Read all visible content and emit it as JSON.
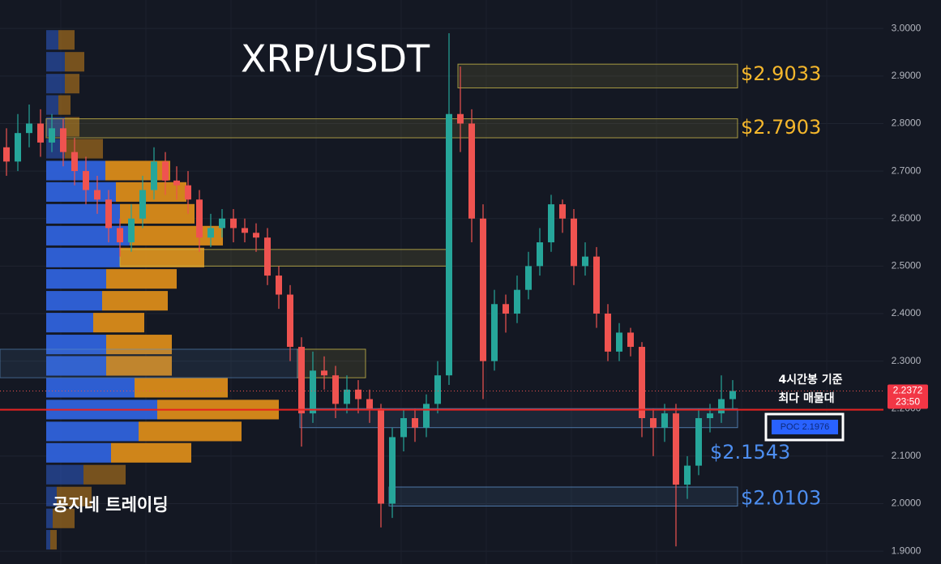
{
  "chart_data": {
    "type": "candlestick",
    "title": "XRP/USDT",
    "watermark": "공지네 트레이딩",
    "open": [
      2.75,
      2.72,
      2.78,
      2.8,
      2.76,
      2.79,
      2.74,
      2.7,
      2.66,
      2.64,
      2.58,
      2.55,
      2.6,
      2.66,
      2.72,
      2.68,
      2.67,
      2.64,
      2.56,
      2.58,
      2.6,
      2.58,
      2.57,
      2.56,
      2.48,
      2.44,
      2.33,
      2.19,
      2.28,
      2.27,
      2.21,
      2.24,
      2.22,
      2.2,
      2.0,
      2.14,
      2.18,
      2.16,
      2.21,
      2.27,
      2.82,
      2.8,
      2.6,
      2.3,
      2.42,
      2.4,
      2.45,
      2.5,
      2.55,
      2.63,
      2.6,
      2.5,
      2.52,
      2.4,
      2.32,
      2.36,
      2.33,
      2.18,
      2.16,
      2.19,
      2.04,
      2.08,
      2.18,
      2.19,
      2.22
    ],
    "high": [
      2.79,
      2.82,
      2.84,
      2.83,
      2.82,
      2.81,
      2.77,
      2.73,
      2.69,
      2.66,
      2.6,
      2.63,
      2.69,
      2.75,
      2.74,
      2.71,
      2.7,
      2.66,
      2.61,
      2.62,
      2.62,
      2.6,
      2.59,
      2.58,
      2.5,
      2.46,
      2.35,
      2.32,
      2.31,
      2.29,
      2.27,
      2.26,
      2.24,
      2.21,
      2.16,
      2.2,
      2.2,
      2.23,
      2.3,
      2.99,
      2.92,
      2.83,
      2.63,
      2.45,
      2.44,
      2.48,
      2.53,
      2.58,
      2.65,
      2.64,
      2.62,
      2.55,
      2.54,
      2.42,
      2.38,
      2.37,
      2.34,
      2.2,
      2.21,
      2.21,
      2.1,
      2.2,
      2.21,
      2.27,
      2.26
    ],
    "low": [
      2.69,
      2.7,
      2.75,
      2.73,
      2.74,
      2.71,
      2.67,
      2.63,
      2.61,
      2.55,
      2.52,
      2.53,
      2.58,
      2.64,
      2.65,
      2.64,
      2.61,
      2.53,
      2.54,
      2.56,
      2.55,
      2.55,
      2.53,
      2.46,
      2.41,
      2.3,
      2.12,
      2.17,
      2.24,
      2.18,
      2.19,
      2.19,
      2.17,
      1.95,
      1.97,
      2.11,
      2.13,
      2.14,
      2.19,
      2.25,
      2.74,
      2.55,
      2.22,
      2.28,
      2.36,
      2.38,
      2.43,
      2.48,
      2.53,
      2.57,
      2.46,
      2.48,
      2.37,
      2.3,
      2.3,
      2.31,
      2.14,
      2.1,
      2.13,
      1.91,
      2.01,
      2.06,
      2.15,
      2.17,
      2.2
    ],
    "close": [
      2.72,
      2.78,
      2.8,
      2.76,
      2.79,
      2.74,
      2.7,
      2.66,
      2.64,
      2.58,
      2.55,
      2.6,
      2.66,
      2.72,
      2.68,
      2.67,
      2.64,
      2.56,
      2.58,
      2.6,
      2.58,
      2.57,
      2.56,
      2.48,
      2.44,
      2.33,
      2.19,
      2.28,
      2.27,
      2.21,
      2.24,
      2.22,
      2.2,
      2.0,
      2.14,
      2.18,
      2.16,
      2.21,
      2.27,
      2.82,
      2.8,
      2.6,
      2.3,
      2.42,
      2.4,
      2.45,
      2.5,
      2.55,
      2.63,
      2.6,
      2.5,
      2.52,
      2.4,
      2.32,
      2.36,
      2.33,
      2.18,
      2.16,
      2.19,
      2.04,
      2.08,
      2.18,
      2.19,
      2.22,
      2.2372
    ],
    "up_color": "#26a69a",
    "down_color": "#ef5350",
    "ylim": [
      1.873,
      3.06
    ],
    "yticks": [
      {
        "value": 1.9,
        "label": "1.9000"
      },
      {
        "value": 2.0,
        "label": "2.0000"
      },
      {
        "value": 2.1,
        "label": "2.1000"
      },
      {
        "value": 2.2,
        "label": "2.2000"
      },
      {
        "value": 2.3,
        "label": "2.3000"
      },
      {
        "value": 2.4,
        "label": "2.4000"
      },
      {
        "value": 2.5,
        "label": "2.5000"
      },
      {
        "value": 2.6,
        "label": "2.6000"
      },
      {
        "value": 2.7,
        "label": "2.7000"
      },
      {
        "value": 2.8,
        "label": "2.8000"
      },
      {
        "value": 2.9,
        "label": "2.9000"
      },
      {
        "value": 3.0,
        "label": "3.0000"
      }
    ],
    "grid": true,
    "volume_profile": {
      "price": [
        2.976,
        2.93,
        2.884,
        2.839,
        2.793,
        2.747,
        2.701,
        2.656,
        2.61,
        2.564,
        2.518,
        2.473,
        2.427,
        2.381,
        2.335,
        2.29,
        2.244,
        2.198,
        2.152,
        2.107,
        2.061,
        2.015,
        1.969,
        1.924
      ],
      "buy": [
        15,
        23,
        23,
        15,
        23,
        23,
        73,
        86,
        91,
        103,
        91,
        74,
        69,
        58,
        74,
        74,
        109,
        137,
        114,
        80,
        46,
        13,
        8,
        5
      ],
      "sell": [
        20,
        24,
        18,
        15,
        18,
        47,
        80,
        87,
        92,
        115,
        104,
        87,
        81,
        63,
        81,
        81,
        115,
        150,
        127,
        99,
        52,
        43,
        27,
        8
      ],
      "buy_color": "#2f62db",
      "sell_color": "#d98b1a"
    },
    "zones": [
      {
        "low": 2.875,
        "high": 2.925,
        "color": "#c9b84a"
      },
      {
        "low": 2.77,
        "high": 2.81,
        "color": "#c9b84a"
      },
      {
        "low": 2.5,
        "high": 2.535,
        "color": "#c9b84a"
      },
      {
        "low": 2.265,
        "high": 2.325,
        "color": "#c9b84a"
      },
      {
        "low": 2.16,
        "high": 2.2,
        "color": "#5b8fc7"
      },
      {
        "low": 1.995,
        "high": 2.035,
        "color": "#5b8fc7"
      }
    ],
    "levels": [
      {
        "value": 2.9033,
        "label": "$2.9033",
        "color": "#f5b72c"
      },
      {
        "value": 2.7903,
        "label": "$2.7903",
        "color": "#f5b72c"
      },
      {
        "value": 2.1543,
        "label": "$2.1543",
        "color": "#4d8ef0"
      },
      {
        "value": 2.0103,
        "label": "$2.0103",
        "color": "#4d8ef0"
      }
    ],
    "poc": {
      "value": 2.1976,
      "label": "POC  2.1976",
      "color": "#e8211f"
    },
    "annotation": [
      "4시간봉 기준",
      "최다 매물대"
    ],
    "last_price": {
      "value": 2.2372,
      "label": "2.2372",
      "countdown": "23:50"
    }
  }
}
